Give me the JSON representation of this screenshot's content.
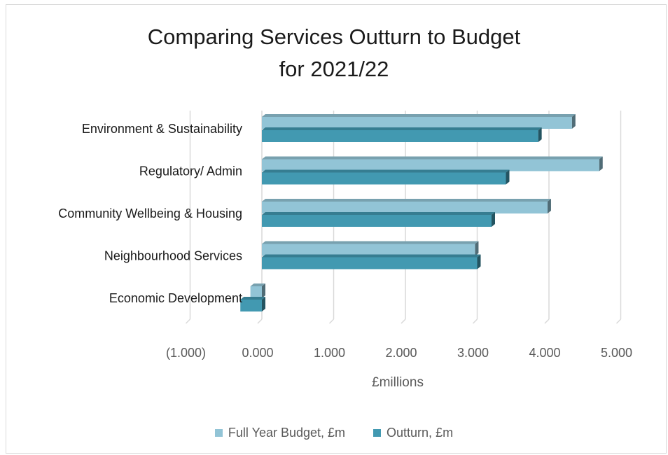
{
  "chart_data": {
    "type": "bar",
    "orientation": "horizontal",
    "style": "3d-clustered",
    "title_lines": [
      "Comparing Services Outturn to Budget",
      "for 2021/22"
    ],
    "categories": [
      "Environment & Sustainability",
      "Regulatory/ Admin",
      "Community Wellbeing & Housing",
      "Neighbourhood Services",
      "Economic Development"
    ],
    "series": [
      {
        "name": "Full Year Budget, £m",
        "color": "#92c4d6",
        "values": [
          4.32,
          4.7,
          3.98,
          2.97,
          -0.16
        ]
      },
      {
        "name": "Outturn, £m",
        "color": "#4299b1",
        "values": [
          3.85,
          3.4,
          3.2,
          3.0,
          -0.3
        ]
      }
    ],
    "xlabel": "£millions",
    "xlim": [
      -1,
      5
    ],
    "x_ticks": [
      -1,
      0,
      1,
      2,
      3,
      4,
      5
    ],
    "x_tick_labels": [
      "(1.000)",
      "0.000",
      "1.000",
      "2.000",
      "3.000",
      "4.000",
      "5.000"
    ],
    "grid": true,
    "legend_position": "bottom"
  }
}
